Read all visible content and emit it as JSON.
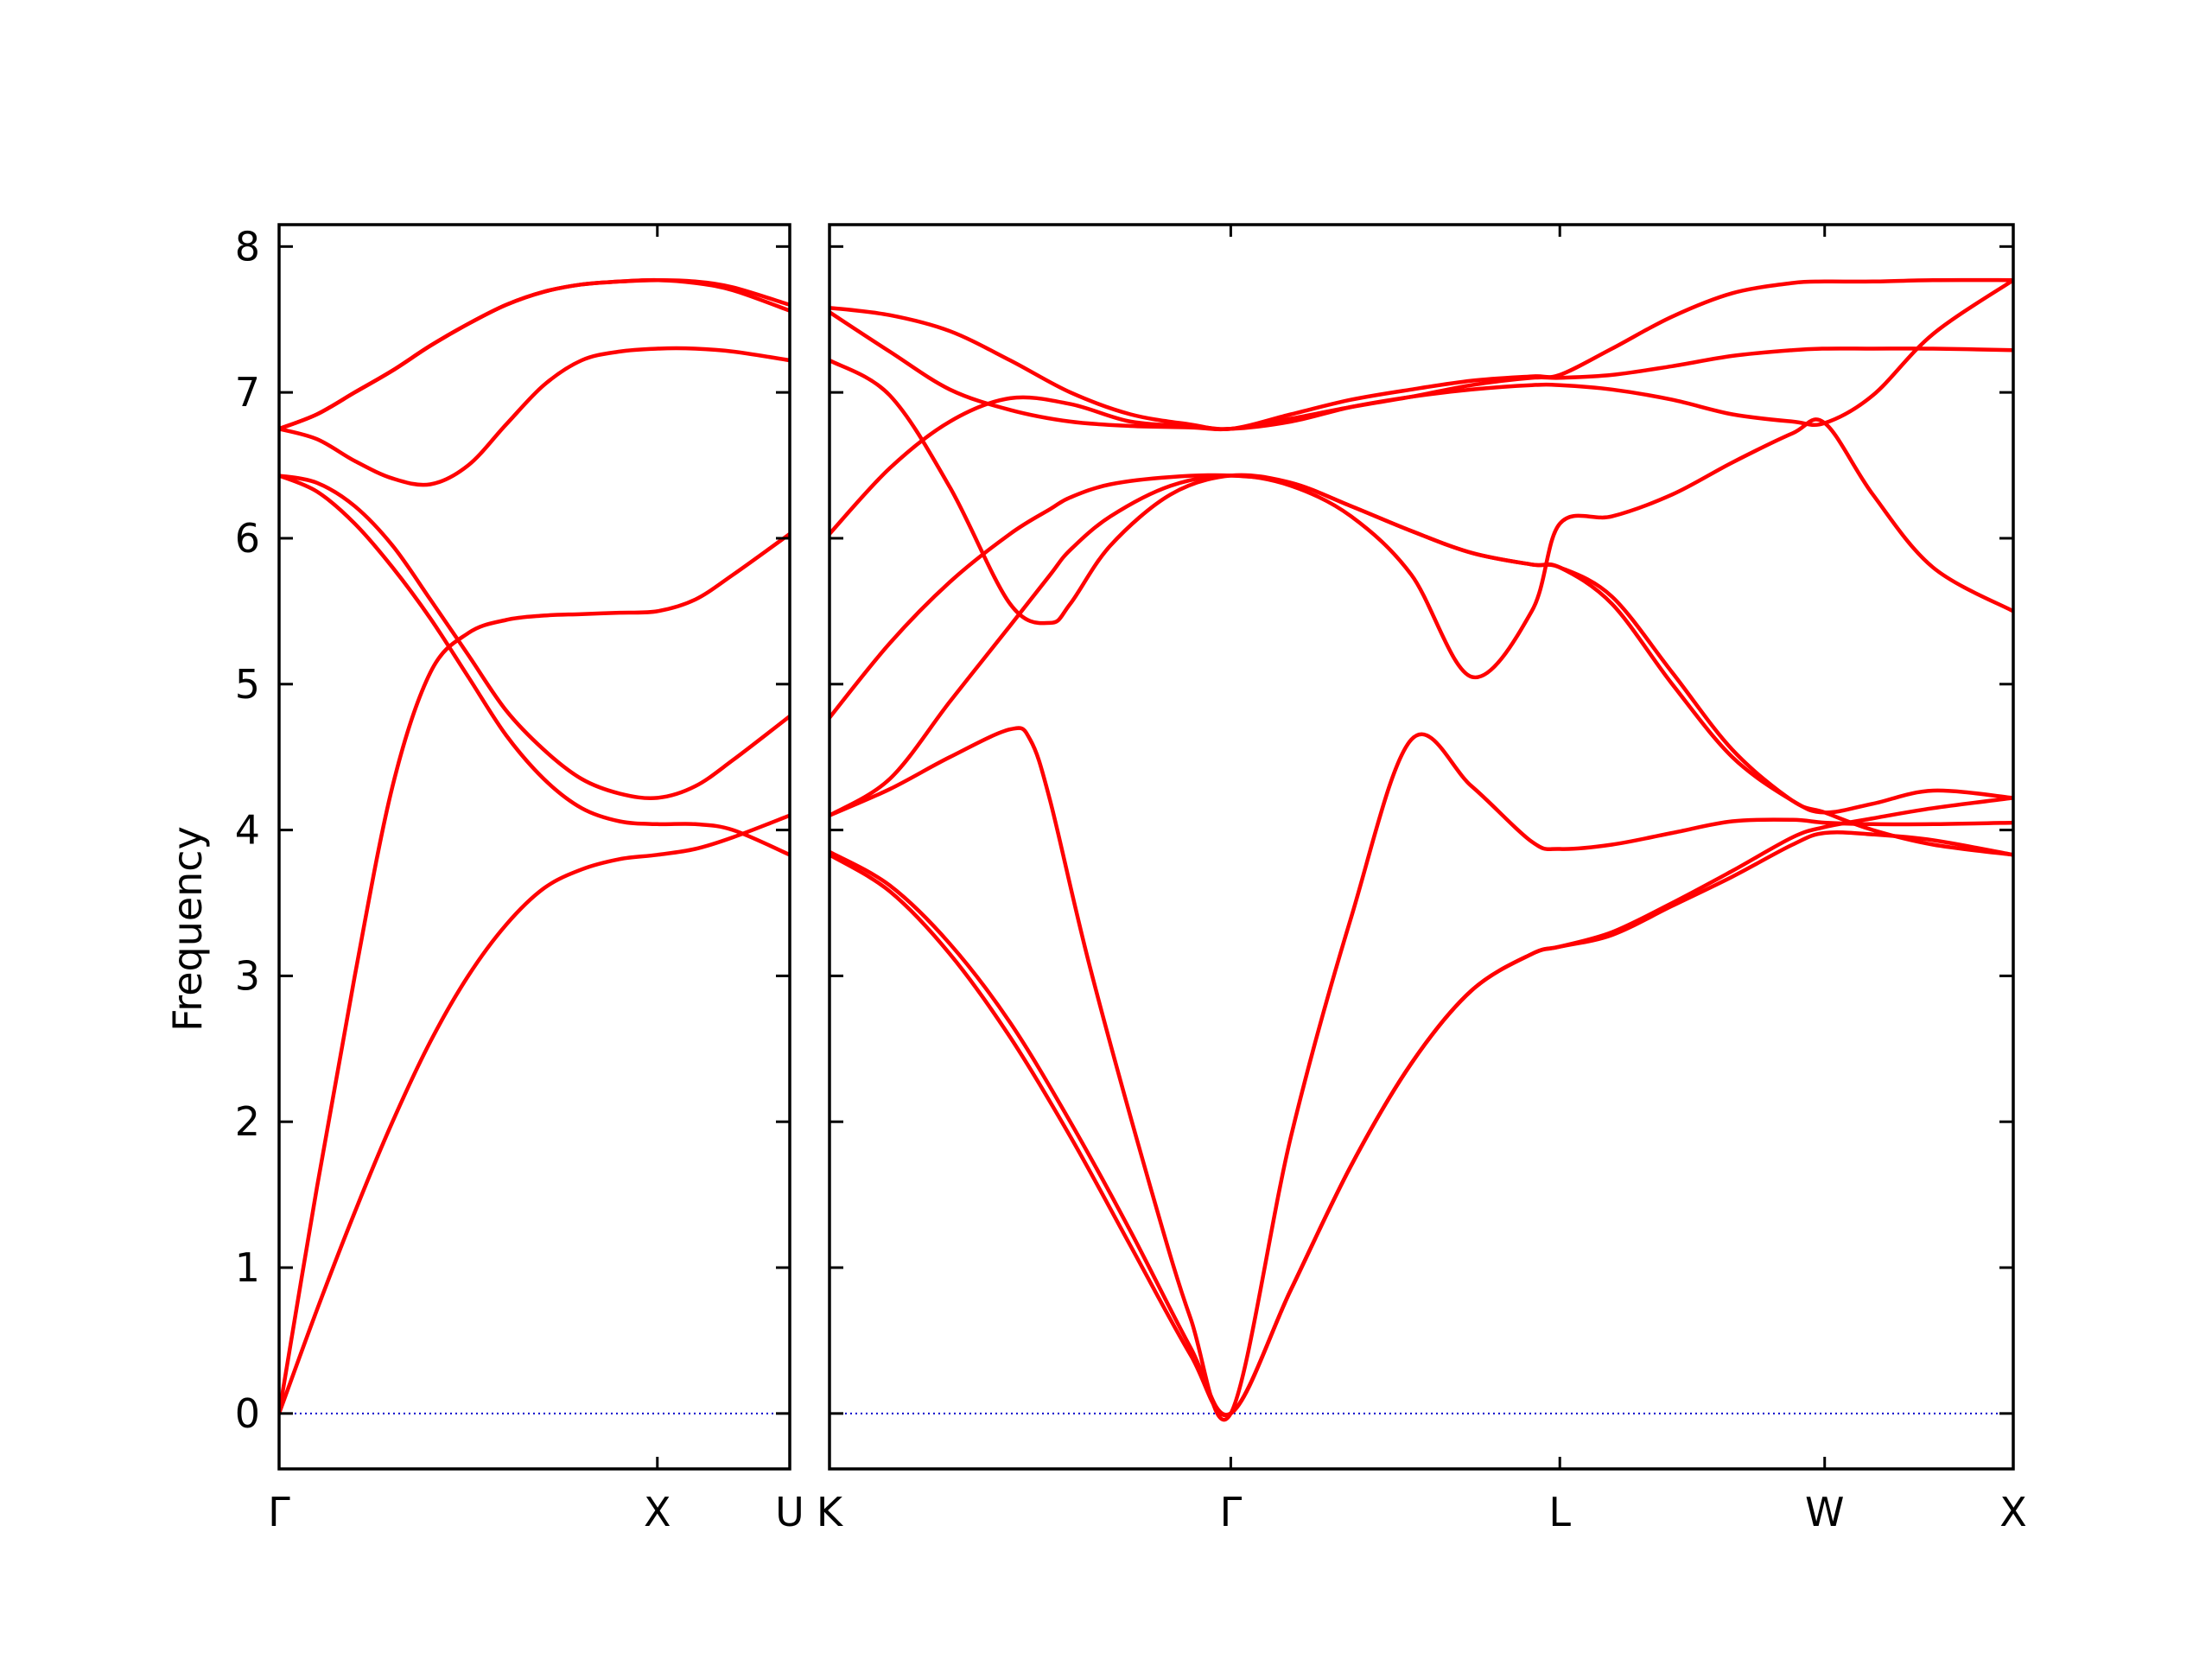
{
  "chart_data": {
    "type": "line",
    "ylabel": "Frequency",
    "ylim": [
      -0.38,
      8.15
    ],
    "yticks": [
      0,
      1,
      2,
      3,
      4,
      5,
      6,
      7,
      8
    ],
    "grid": false,
    "legend": "none",
    "colors": {
      "bands": "#ff0000",
      "zero_line": "#0000cc",
      "axes": "#000000"
    },
    "segments": [
      {
        "xlim": [
          0,
          1.35
        ],
        "labels": [
          {
            "x": 0,
            "text": "Γ"
          },
          {
            "x": 1.0,
            "text": "X"
          },
          {
            "x": 1.35,
            "text": "U"
          }
        ],
        "series": [
          {
            "x": [
              0,
              0.1,
              0.2,
              0.3,
              0.4,
              0.5,
              0.6,
              0.7,
              0.8,
              0.9,
              1.0,
              1.1,
              1.2,
              1.35
            ],
            "values": [
              0,
              0.71,
              1.38,
              2.0,
              2.55,
              3.0,
              3.35,
              3.6,
              3.73,
              3.8,
              3.83,
              3.87,
              3.95,
              4.1
            ]
          },
          {
            "x": [
              0,
              0.1,
              0.2,
              0.3,
              0.4,
              0.5,
              0.6,
              0.7,
              0.8,
              0.9,
              1.0,
              1.1,
              1.2,
              1.35
            ],
            "values": [
              0,
              1.55,
              3.0,
              4.3,
              5.08,
              5.35,
              5.44,
              5.47,
              5.48,
              5.49,
              5.5,
              5.58,
              5.75,
              6.03
            ]
          },
          {
            "x": [
              0,
              0.1,
              0.2,
              0.3,
              0.4,
              0.5,
              0.6,
              0.7,
              0.8,
              0.9,
              1.0,
              1.1,
              1.2,
              1.35
            ],
            "values": [
              6.43,
              6.32,
              6.1,
              5.8,
              5.45,
              5.05,
              4.65,
              4.35,
              4.15,
              4.06,
              4.04,
              4.04,
              4.0,
              3.83
            ]
          },
          {
            "x": [
              0,
              0.1,
              0.2,
              0.3,
              0.4,
              0.5,
              0.6,
              0.7,
              0.8,
              0.9,
              1.0,
              1.1,
              1.2,
              1.35
            ],
            "values": [
              6.43,
              6.38,
              6.22,
              5.95,
              5.58,
              5.2,
              4.82,
              4.55,
              4.35,
              4.25,
              4.22,
              4.3,
              4.48,
              4.78
            ]
          },
          {
            "x": [
              0,
              0.1,
              0.2,
              0.3,
              0.4,
              0.5,
              0.6,
              0.7,
              0.8,
              0.9,
              1.0,
              1.1,
              1.2,
              1.35
            ],
            "values": [
              6.75,
              6.68,
              6.53,
              6.41,
              6.37,
              6.5,
              6.78,
              7.05,
              7.22,
              7.28,
              7.3,
              7.3,
              7.28,
              7.22
            ]
          },
          {
            "x": [
              0,
              0.1,
              0.2,
              0.3,
              0.4,
              0.5,
              0.6,
              0.7,
              0.8,
              0.9,
              1.0,
              1.1,
              1.2,
              1.35
            ],
            "values": [
              6.75,
              6.85,
              7.0,
              7.15,
              7.32,
              7.47,
              7.6,
              7.69,
              7.74,
              7.76,
              7.77,
              7.75,
              7.7,
              7.56
            ]
          },
          {
            "x": [
              0,
              0.1,
              0.2,
              0.3,
              0.4,
              0.5,
              0.6,
              0.7,
              0.8,
              0.9,
              1.0,
              1.1,
              1.2,
              1.35
            ],
            "values": [
              6.75,
              6.85,
              7.0,
              7.15,
              7.32,
              7.47,
              7.6,
              7.69,
              7.74,
              7.76,
              7.77,
              7.76,
              7.72,
              7.6
            ]
          }
        ]
      },
      {
        "xlim": [
          0,
          2.95
        ],
        "labels": [
          {
            "x": 0,
            "text": "K"
          },
          {
            "x": 1.0,
            "text": "Γ"
          },
          {
            "x": 1.82,
            "text": "L"
          },
          {
            "x": 2.48,
            "text": "W"
          },
          {
            "x": 2.95,
            "text": "X"
          }
        ],
        "series": [
          {
            "x": [
              0,
              0.15,
              0.3,
              0.45,
              0.6,
              0.75,
              0.9,
              1.0,
              1.15,
              1.3,
              1.45,
              1.6,
              1.75,
              1.82,
              1.95,
              2.1,
              2.25,
              2.4,
              2.48,
              2.6,
              2.75,
              2.95
            ],
            "values": [
              3.85,
              3.62,
              3.22,
              2.68,
              2.0,
              1.25,
              0.45,
              0,
              0.85,
              1.7,
              2.4,
              2.9,
              3.15,
              3.2,
              3.3,
              3.5,
              3.72,
              3.95,
              4.02,
              4.08,
              4.15,
              4.22
            ]
          },
          {
            "x": [
              0,
              0.15,
              0.3,
              0.45,
              0.6,
              0.75,
              0.9,
              1.0,
              1.15,
              1.3,
              1.45,
              1.6,
              1.75,
              1.82,
              1.95,
              2.1,
              2.25,
              2.4,
              2.48,
              2.6,
              2.75,
              2.95
            ],
            "values": [
              3.83,
              3.58,
              3.15,
              2.58,
              1.9,
              1.15,
              0.4,
              0,
              0.85,
              1.7,
              2.4,
              2.9,
              3.15,
              3.2,
              3.28,
              3.48,
              3.68,
              3.9,
              3.98,
              3.97,
              3.93,
              3.83
            ]
          },
          {
            "x": [
              0,
              0.15,
              0.3,
              0.45,
              0.5,
              0.55,
              0.65,
              0.8,
              0.9,
              1.0,
              1.15,
              1.3,
              1.45,
              1.6,
              1.75,
              1.82,
              1.95,
              2.1,
              2.25,
              2.4,
              2.48,
              2.6,
              2.75,
              2.95
            ],
            "values": [
              4.1,
              4.28,
              4.5,
              4.69,
              4.62,
              4.2,
              3.05,
              1.55,
              0.65,
              0,
              1.9,
              3.4,
              4.62,
              4.3,
              3.92,
              3.87,
              3.9,
              3.98,
              4.06,
              4.07,
              4.05,
              4.04,
              4.04,
              4.05
            ]
          },
          {
            "x": [
              0,
              0.15,
              0.3,
              0.45,
              0.55,
              0.6,
              0.7,
              0.85,
              1.0,
              1.15,
              1.3,
              1.45,
              1.6,
              1.75,
              1.82,
              1.95,
              2.1,
              2.25,
              2.4,
              2.48,
              2.6,
              2.75,
              2.95
            ],
            "values": [
              4.1,
              4.35,
              4.88,
              5.4,
              5.75,
              5.92,
              6.15,
              6.36,
              6.43,
              6.36,
              6.15,
              5.75,
              5.05,
              5.5,
              6.1,
              6.15,
              6.3,
              6.52,
              6.72,
              6.79,
              6.3,
              5.8,
              5.5
            ]
          },
          {
            "x": [
              0,
              0.15,
              0.3,
              0.45,
              0.55,
              0.6,
              0.7,
              0.85,
              1.0,
              1.15,
              1.3,
              1.45,
              1.6,
              1.75,
              1.82,
              1.95,
              2.1,
              2.25,
              2.4,
              2.48,
              2.6,
              2.75,
              2.95
            ],
            "values": [
              4.77,
              5.28,
              5.7,
              6.03,
              6.2,
              6.28,
              6.37,
              6.42,
              6.43,
              6.38,
              6.22,
              6.05,
              5.9,
              5.82,
              5.8,
              5.6,
              5.08,
              4.55,
              4.2,
              4.12,
              4.0,
              3.9,
              3.83
            ]
          },
          {
            "x": [
              0,
              0.15,
              0.3,
              0.45,
              0.55,
              0.6,
              0.7,
              0.85,
              1.0,
              1.15,
              1.3,
              1.45,
              1.6,
              1.75,
              1.82,
              1.95,
              2.1,
              2.25,
              2.4,
              2.48,
              2.6,
              2.75,
              2.95
            ],
            "values": [
              7.22,
              6.98,
              6.35,
              5.55,
              5.42,
              5.55,
              5.95,
              6.3,
              6.43,
              6.38,
              6.22,
              6.05,
              5.9,
              5.82,
              5.8,
              5.55,
              5.0,
              4.5,
              4.2,
              4.12,
              4.18,
              4.27,
              4.22
            ]
          },
          {
            "x": [
              0,
              0.15,
              0.3,
              0.45,
              0.6,
              0.75,
              0.9,
              1.0,
              1.15,
              1.3,
              1.45,
              1.6,
              1.75,
              1.82,
              1.95,
              2.1,
              2.25,
              2.4,
              2.48,
              2.6,
              2.75,
              2.95
            ],
            "values": [
              6.03,
              6.48,
              6.8,
              6.96,
              6.92,
              6.8,
              6.77,
              6.75,
              6.8,
              6.9,
              6.97,
              7.02,
              7.05,
              7.05,
              7.02,
              6.95,
              6.85,
              6.8,
              6.79,
              6.98,
              7.4,
              7.77
            ]
          },
          {
            "x": [
              0,
              0.15,
              0.3,
              0.45,
              0.6,
              0.75,
              0.9,
              1.0,
              1.15,
              1.3,
              1.45,
              1.6,
              1.75,
              1.82,
              1.95,
              2.1,
              2.25,
              2.4,
              2.48,
              2.6,
              2.75,
              2.95
            ],
            "values": [
              7.55,
              7.28,
              7.02,
              6.88,
              6.8,
              6.77,
              6.76,
              6.75,
              6.82,
              6.9,
              6.97,
              7.05,
              7.1,
              7.1,
              7.12,
              7.18,
              7.25,
              7.29,
              7.3,
              7.3,
              7.3,
              7.29
            ]
          },
          {
            "x": [
              0,
              0.15,
              0.3,
              0.45,
              0.6,
              0.75,
              0.9,
              1.0,
              1.15,
              1.3,
              1.45,
              1.6,
              1.75,
              1.82,
              1.95,
              2.1,
              2.25,
              2.4,
              2.48,
              2.6,
              2.75,
              2.95
            ],
            "values": [
              7.58,
              7.53,
              7.42,
              7.22,
              7.0,
              6.85,
              6.78,
              6.75,
              6.85,
              6.95,
              7.02,
              7.08,
              7.11,
              7.12,
              7.3,
              7.52,
              7.68,
              7.75,
              7.76,
              7.76,
              7.77,
              7.77
            ]
          }
        ]
      }
    ]
  }
}
